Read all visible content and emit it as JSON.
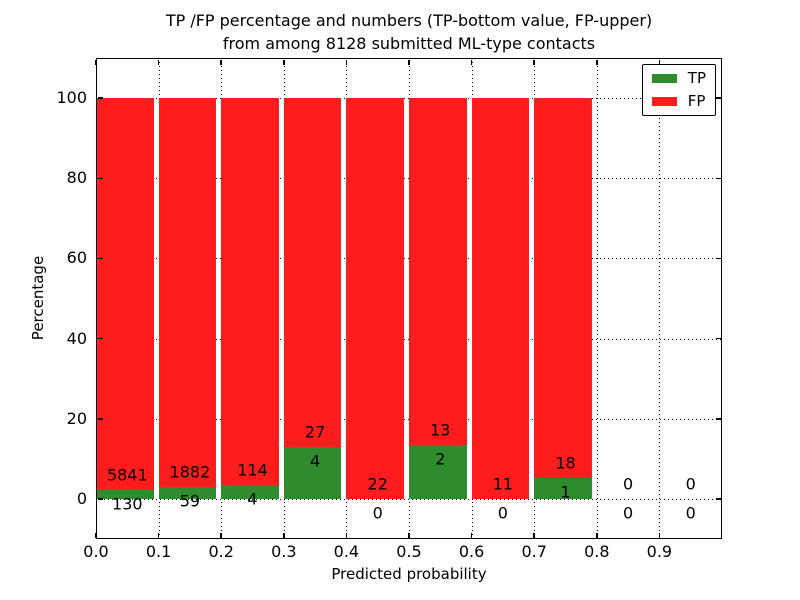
{
  "chart_data": {
    "type": "bar",
    "stacked": true,
    "normalized_to_percent": 100,
    "title": "TP /FP percentage and numbers (TP-bottom value, FP-upper)",
    "subtitle": "from among 8128 submitted ML-type contacts",
    "x_axis": {
      "label": "Predicted probability",
      "ticks": [
        0.0,
        0.1,
        0.2,
        0.3,
        0.4,
        0.5,
        0.6,
        0.7,
        0.8,
        0.9
      ],
      "tick_labels": [
        "0.0",
        "0.1",
        "0.2",
        "0.3",
        "0.4",
        "0.5",
        "0.6",
        "0.7",
        "0.8",
        "0.9"
      ]
    },
    "y_axis": {
      "label": "Percentage",
      "ticks": [
        0,
        20,
        40,
        60,
        80,
        100
      ],
      "tick_labels": [
        "0",
        "20",
        "40",
        "60",
        "80",
        "100"
      ]
    },
    "xlim": [
      0.0,
      1.0
    ],
    "ylim": [
      -10,
      110
    ],
    "grid": "dotted",
    "legend_position": "upper right",
    "categories": [
      "0.0-0.1",
      "0.1-0.2",
      "0.2-0.3",
      "0.3-0.4",
      "0.4-0.5",
      "0.5-0.6",
      "0.6-0.7",
      "0.7-0.8",
      "0.8-0.9",
      "0.9-1.0"
    ],
    "bin_starts": [
      0.0,
      0.1,
      0.2,
      0.3,
      0.4,
      0.5,
      0.6,
      0.7,
      0.8,
      0.9
    ],
    "bin_width": 0.1,
    "bar_width": 0.092,
    "series": [
      {
        "name": "TP",
        "color": "#2e8b2e",
        "values": [
          130,
          59,
          4,
          4,
          0,
          2,
          0,
          1,
          0,
          0
        ]
      },
      {
        "name": "FP",
        "color": "#ff1c1c",
        "values": [
          5841,
          1882,
          114,
          27,
          22,
          13,
          11,
          18,
          0,
          0
        ]
      }
    ]
  }
}
